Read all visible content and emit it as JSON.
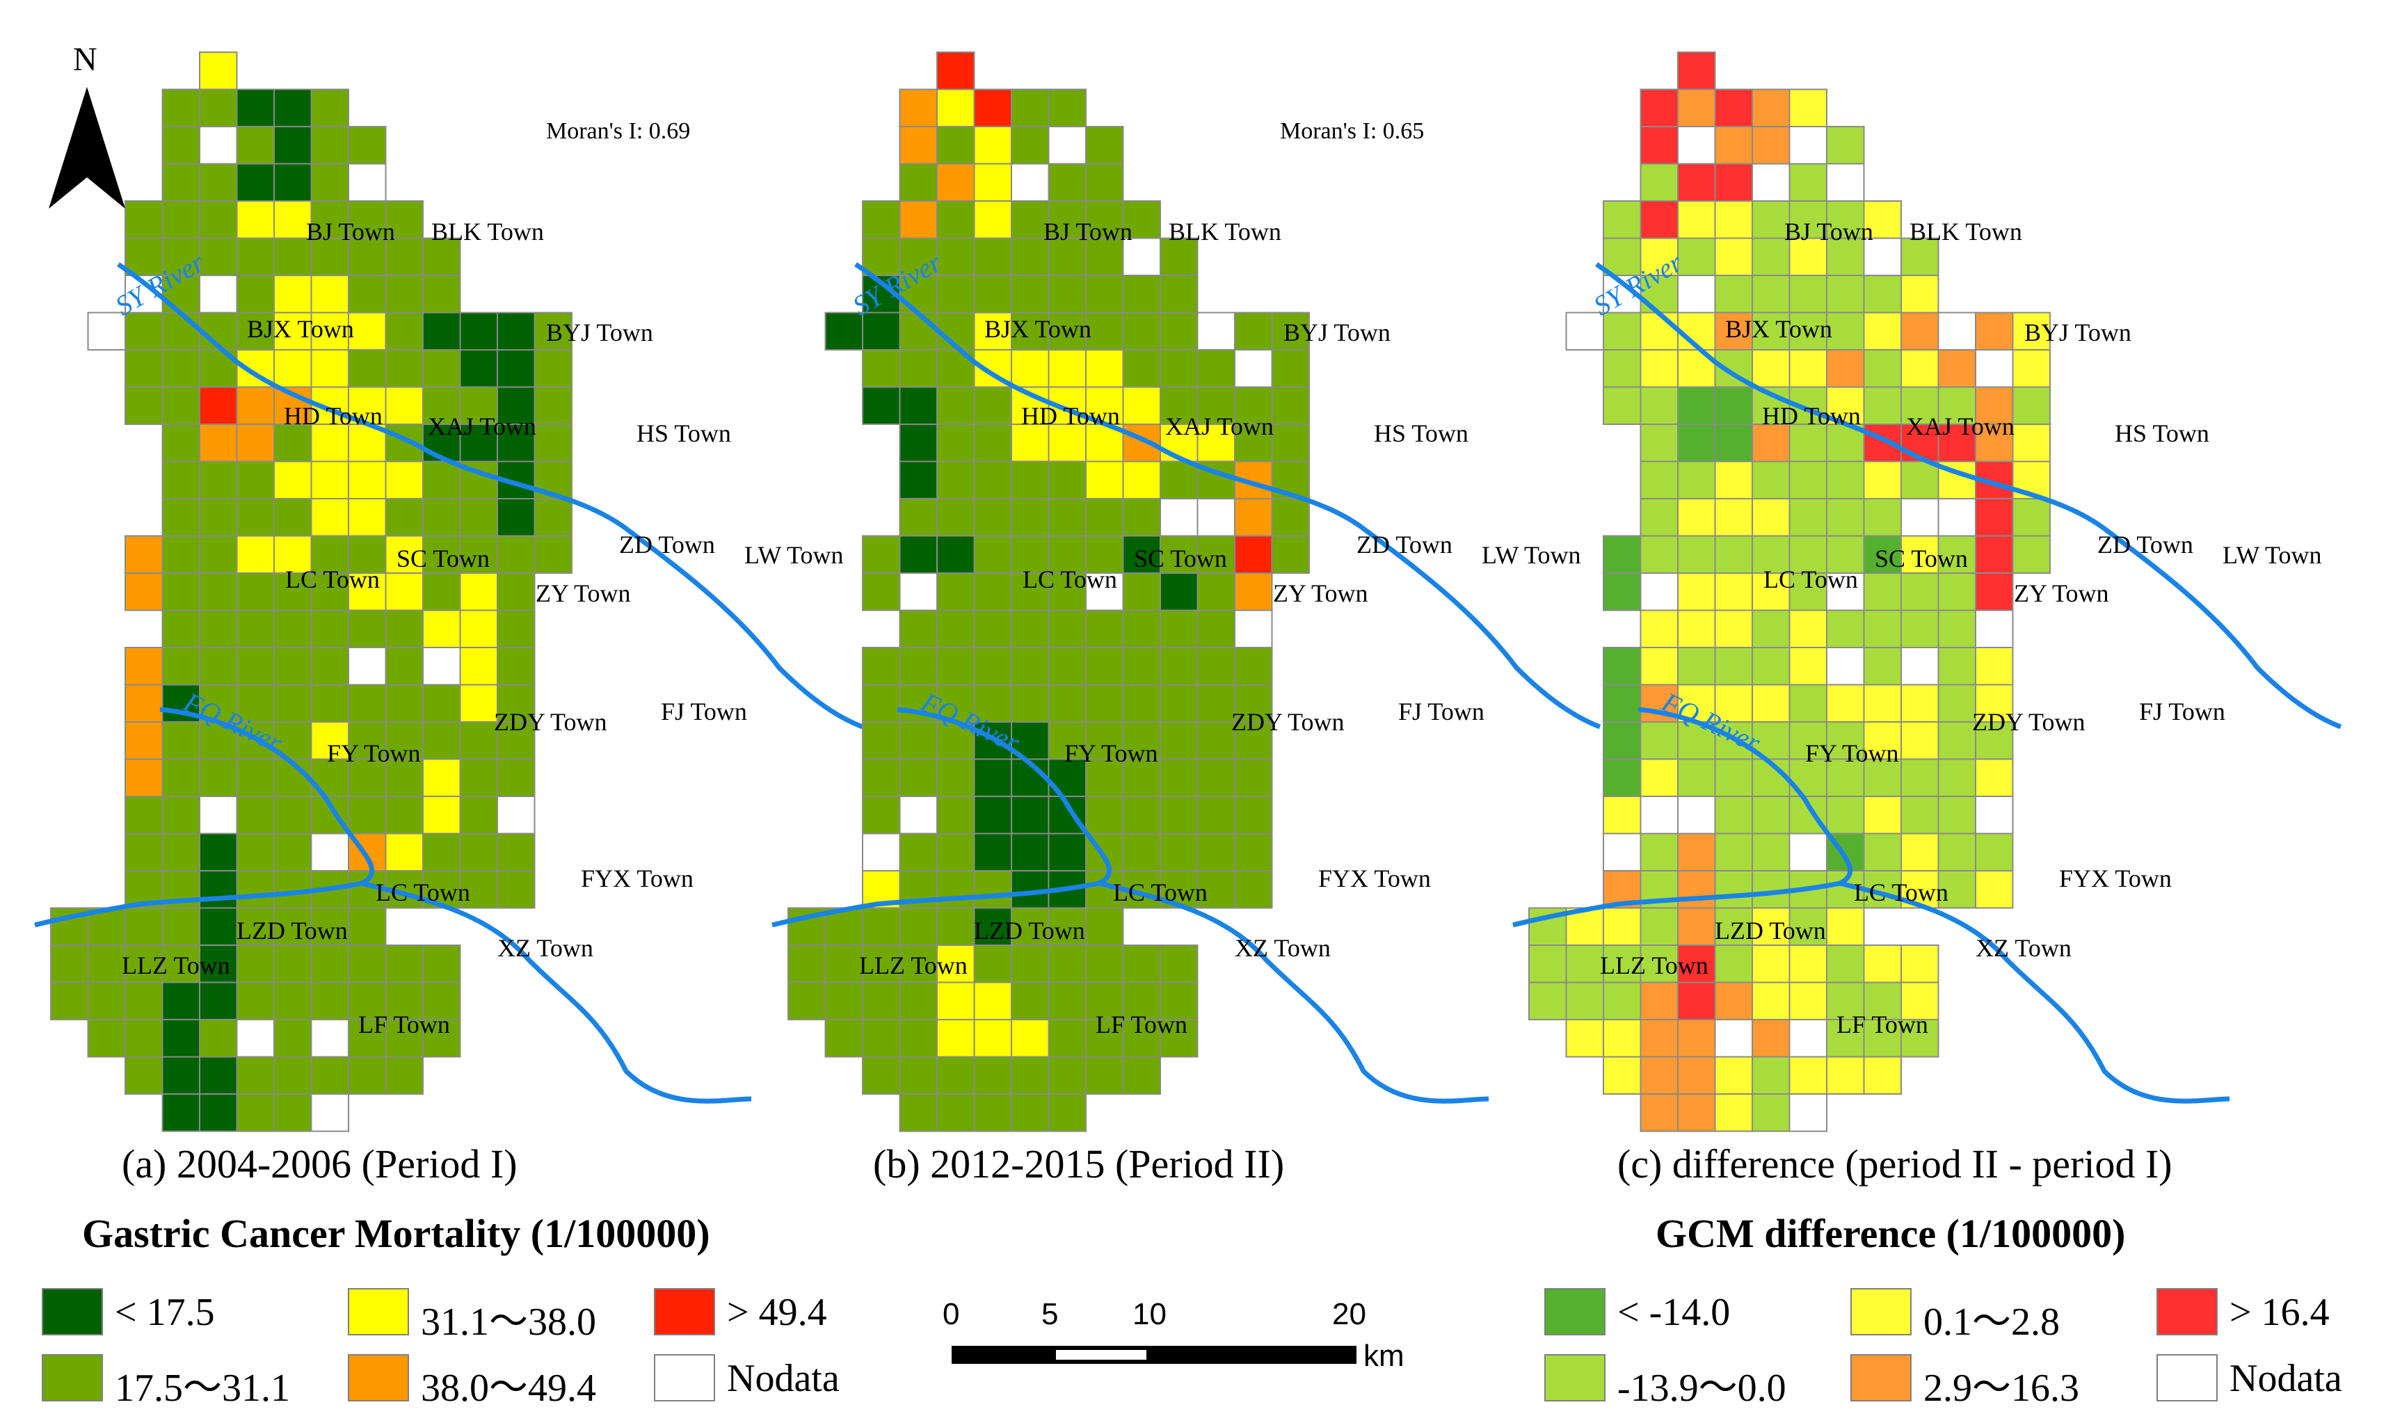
{
  "north_label": "N",
  "panels": [
    {
      "id": "a",
      "caption": "(a)  2004-2006 (Period I)",
      "moran": "Moran's I: 0.69"
    },
    {
      "id": "b",
      "caption": "(b)  2012-2015 (Period II)",
      "moran": "Moran's I: 0.65"
    },
    {
      "id": "c",
      "caption": "(c)  difference (period II - period I)",
      "moran": ""
    }
  ],
  "towns": [
    "BJ Town",
    "BLK Town",
    "BJX Town",
    "BYJ Town",
    "HD Town",
    "XAJ Town",
    "HS Town",
    "SC Town",
    "ZD Town",
    "LW Town",
    "LC Town",
    "ZY Town",
    "ZDY Town",
    "FJ Town",
    "FY Town",
    "LC Town",
    "FYX Town",
    "LZD Town",
    "XZ Town",
    "LLZ Town",
    "LF Town"
  ],
  "rivers": [
    "SY River",
    "FQ River"
  ],
  "legend_mortality": {
    "title": "Gastric Cancer Mortality (1/100000)",
    "items": [
      {
        "label": "< 17.5",
        "color": "#006100"
      },
      {
        "label": "17.5～31.1",
        "color": "#70a800"
      },
      {
        "label": "31.1～38.0",
        "color": "#ffff00"
      },
      {
        "label": "38.0～49.4",
        "color": "#ff9900"
      },
      {
        "label": "> 49.4",
        "color": "#ff2200"
      },
      {
        "label": "Nodata",
        "color": "#ffffff"
      }
    ]
  },
  "legend_difference": {
    "title": "GCM difference (1/100000)",
    "items": [
      {
        "label": "< -14.0",
        "color": "#55b030"
      },
      {
        "label": "-13.9～0.0",
        "color": "#a8dc3c"
      },
      {
        "label": "0.1～2.8",
        "color": "#ffff33"
      },
      {
        "label": "2.9～16.3",
        "color": "#ff9933"
      },
      {
        "label": "> 16.4",
        "color": "#ff3030"
      },
      {
        "label": "Nodata",
        "color": "#ffffff"
      }
    ]
  },
  "scalebar": {
    "ticks": [
      "0",
      "5",
      "10",
      "20"
    ],
    "unit": "km"
  }
}
